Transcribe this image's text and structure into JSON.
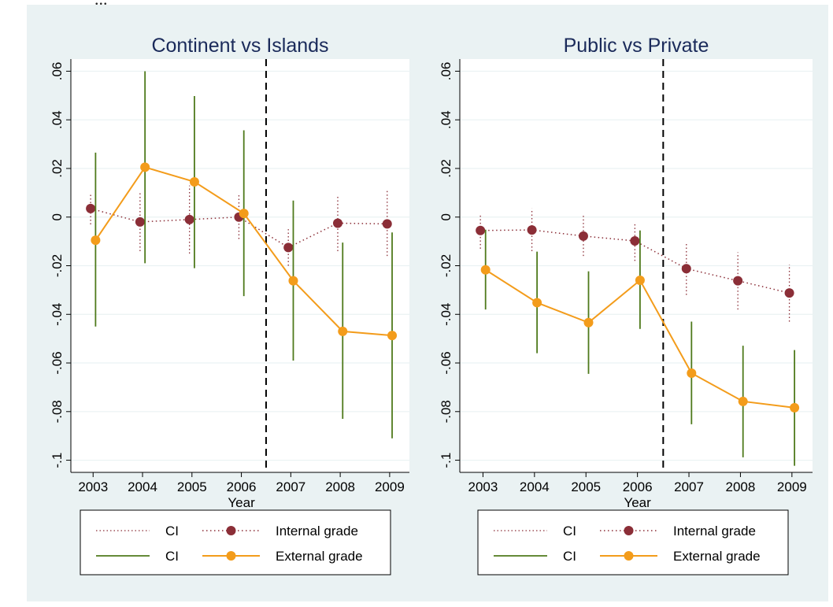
{
  "header_snippet": "...",
  "colors": {
    "background": "#eaf2f3",
    "plot_bg": "#ffffff",
    "grid": "#eaf2f3",
    "internal": "#8b2e37",
    "internal_ci": "#8b2e37",
    "external": "#f39c1b",
    "external_ci": "#4f7a1c",
    "cutoff": "#000000",
    "title": "#1a2a5a"
  },
  "chart_data": [
    {
      "type": "line",
      "title": "Continent vs Islands",
      "xlabel": "Year",
      "ylabel": "",
      "x": [
        2003,
        2004,
        2005,
        2006,
        2007,
        2008,
        2009
      ],
      "ylim": [
        -0.105,
        0.065
      ],
      "yticks": [
        0.06,
        0.04,
        0.02,
        0,
        -0.02,
        -0.04,
        -0.06,
        -0.08,
        -0.1
      ],
      "ytick_labels": [
        ".06",
        ".04",
        ".02",
        "0",
        "-.02",
        "-.04",
        "-.06",
        "-.08",
        "-.1"
      ],
      "xtick_labels": [
        "2003",
        "2004",
        "2005",
        "2006",
        "2007",
        "2008",
        "2009"
      ],
      "cutoff_x": 2006.5,
      "grid": true,
      "series": [
        {
          "name": "Internal grade",
          "offset": -0.05,
          "values": [
            0.0035,
            -0.002,
            -0.001,
            0.0,
            -0.0125,
            -0.0025,
            -0.0028
          ],
          "ci_low": [
            -0.003,
            -0.014,
            -0.015,
            -0.009,
            -0.02,
            -0.014,
            -0.016
          ],
          "ci_high": [
            0.01,
            0.01,
            0.013,
            0.009,
            -0.005,
            0.009,
            0.011
          ]
        },
        {
          "name": "External grade",
          "offset": 0.05,
          "values": [
            -0.0095,
            0.0205,
            0.0145,
            0.0015,
            -0.0262,
            -0.047,
            -0.0487
          ],
          "ci_low": [
            -0.045,
            -0.019,
            -0.021,
            -0.0325,
            -0.059,
            -0.083,
            -0.091
          ],
          "ci_high": [
            0.0265,
            0.06,
            0.0498,
            0.0357,
            0.0068,
            -0.0105,
            -0.0063
          ]
        }
      ],
      "legend": [
        {
          "label": "CI",
          "kind": "internal_ci"
        },
        {
          "label": "Internal grade",
          "kind": "internal"
        },
        {
          "label": "CI",
          "kind": "external_ci"
        },
        {
          "label": "External grade",
          "kind": "external"
        }
      ],
      "legend_position": "bottom"
    },
    {
      "type": "line",
      "title": "Public vs Private",
      "xlabel": "Year",
      "ylabel": "",
      "x": [
        2003,
        2004,
        2005,
        2006,
        2007,
        2008,
        2009
      ],
      "ylim": [
        -0.105,
        0.065
      ],
      "yticks": [
        0.06,
        0.04,
        0.02,
        0,
        -0.02,
        -0.04,
        -0.06,
        -0.08,
        -0.1
      ],
      "ytick_labels": [
        ".06",
        ".04",
        ".02",
        "0",
        "-.02",
        "-.04",
        "-.06",
        "-.08",
        "-.1"
      ],
      "xtick_labels": [
        "2003",
        "2004",
        "2005",
        "2006",
        "2007",
        "2008",
        "2009"
      ],
      "cutoff_x": 2006.5,
      "grid": true,
      "series": [
        {
          "name": "Internal grade",
          "offset": -0.05,
          "values": [
            -0.0055,
            -0.0053,
            -0.0078,
            -0.0098,
            -0.0212,
            -0.0262,
            -0.0312
          ],
          "ci_low": [
            -0.013,
            -0.014,
            -0.016,
            -0.018,
            -0.032,
            -0.038,
            -0.043
          ],
          "ci_high": [
            0.0015,
            0.0035,
            0.001,
            -0.002,
            -0.0105,
            -0.0145,
            -0.0195
          ]
        },
        {
          "name": "External grade",
          "offset": 0.05,
          "values": [
            -0.0217,
            -0.0352,
            -0.0434,
            -0.026,
            -0.0642,
            -0.0758,
            -0.0784
          ],
          "ci_low": [
            -0.038,
            -0.056,
            -0.0645,
            -0.046,
            -0.0852,
            -0.0988,
            -0.1023
          ],
          "ci_high": [
            -0.0052,
            -0.0142,
            -0.0223,
            -0.0055,
            -0.043,
            -0.0529,
            -0.0547
          ]
        }
      ],
      "legend": [
        {
          "label": "CI",
          "kind": "internal_ci"
        },
        {
          "label": "Internal grade",
          "kind": "internal"
        },
        {
          "label": "CI",
          "kind": "external_ci"
        },
        {
          "label": "External grade",
          "kind": "external"
        }
      ],
      "legend_position": "bottom"
    }
  ]
}
